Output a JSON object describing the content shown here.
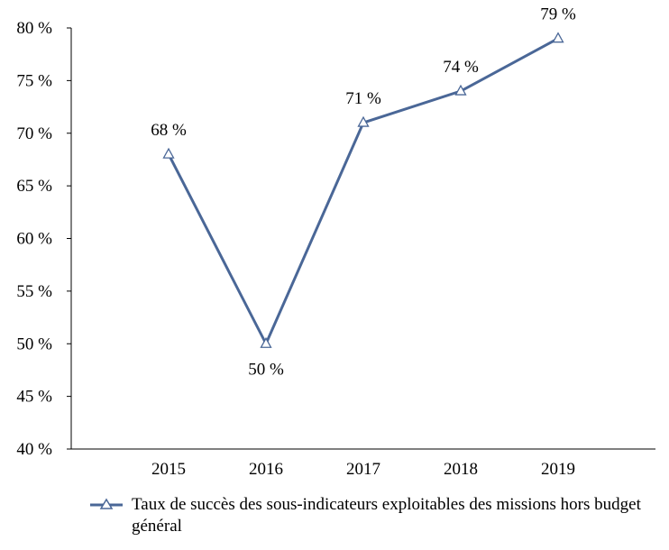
{
  "chart_data": {
    "type": "line",
    "categories": [
      "2015",
      "2016",
      "2017",
      "2018",
      "2019"
    ],
    "series": [
      {
        "name": "Taux de succès des sous-indicateurs exploitables des missions hors budget général",
        "values": [
          68,
          50,
          71,
          74,
          79
        ],
        "data_labels": [
          "68 %",
          "50 %",
          "71 %",
          "74 %",
          "79 %"
        ],
        "color": "#4a6797",
        "marker": "triangle-open"
      }
    ],
    "ylim": [
      40,
      80
    ],
    "yticks": [
      40,
      45,
      50,
      55,
      60,
      65,
      70,
      75,
      80
    ],
    "ytick_labels": [
      "40 %",
      "45 %",
      "50 %",
      "55 %",
      "60 %",
      "65 %",
      "70 %",
      "75 %",
      "80 %"
    ],
    "grid": false,
    "legend_position": "bottom"
  }
}
